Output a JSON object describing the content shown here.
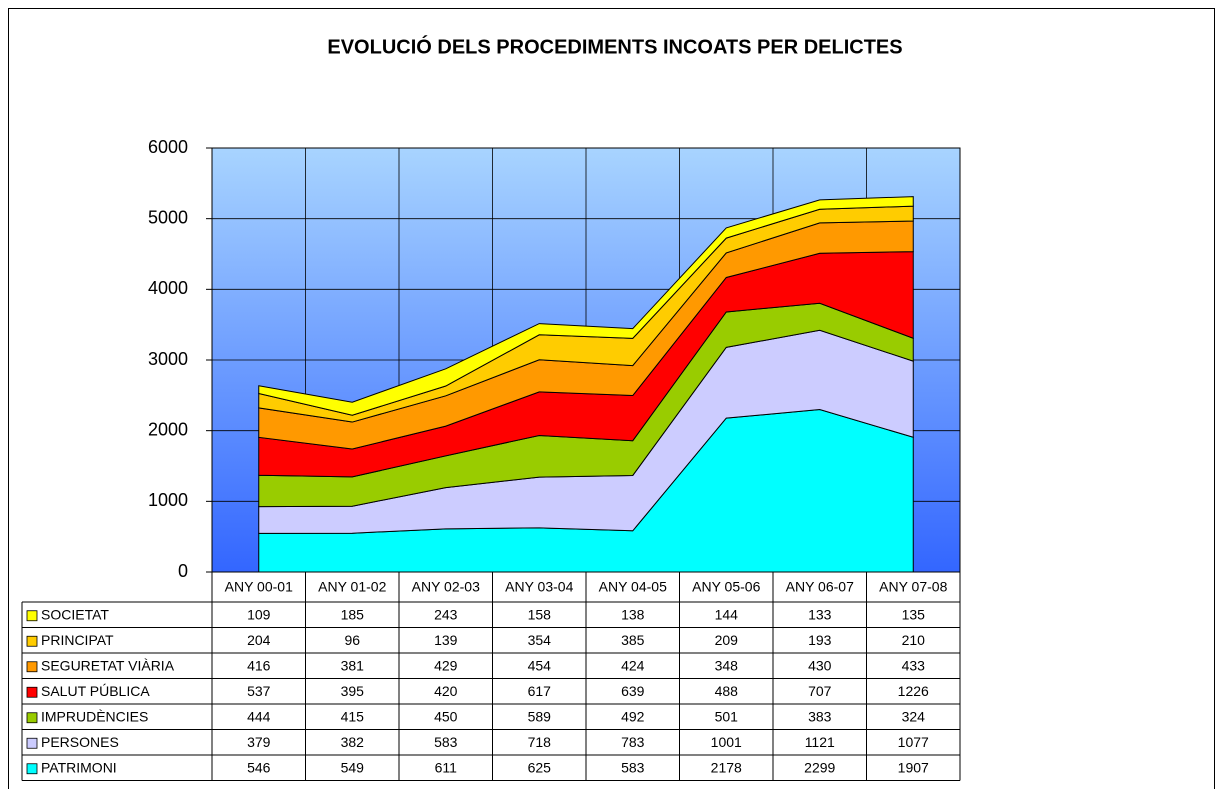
{
  "chart_data": {
    "type": "area",
    "stacked": true,
    "title": "EVOLUCIÓ DELS PROCEDIMENTS INCOATS PER DELICTES",
    "categories": [
      "ANY 00-01",
      "ANY 01-02",
      "ANY 02-03",
      "ANY 03-04",
      "ANY 04-05",
      "ANY 05-06",
      "ANY 06-07",
      "ANY 07-08"
    ],
    "series": [
      {
        "name": "SOCIETAT",
        "color": "#ffff00",
        "values": [
          109,
          185,
          243,
          158,
          138,
          144,
          133,
          135
        ]
      },
      {
        "name": "PRINCIPAT",
        "color": "#ffcc00",
        "values": [
          204,
          96,
          139,
          354,
          385,
          209,
          193,
          210
        ]
      },
      {
        "name": "SEGURETAT VIÀRIA",
        "color": "#ff9900",
        "values": [
          416,
          381,
          429,
          454,
          424,
          348,
          430,
          433
        ]
      },
      {
        "name": "SALUT PÚBLICA",
        "color": "#ff0000",
        "values": [
          537,
          395,
          420,
          617,
          639,
          488,
          707,
          1226
        ]
      },
      {
        "name": "IMPRUDÈNCIES",
        "color": "#99cc00",
        "values": [
          444,
          415,
          450,
          589,
          492,
          501,
          383,
          324
        ]
      },
      {
        "name": "PERSONES",
        "color": "#ccccff",
        "values": [
          379,
          382,
          583,
          718,
          783,
          1001,
          1121,
          1077
        ]
      },
      {
        "name": "PATRIMONI",
        "color": "#00ffff",
        "values": [
          546,
          549,
          611,
          625,
          583,
          2178,
          2299,
          1907
        ]
      }
    ],
    "ylim": [
      0,
      6000
    ],
    "yticks": [
      0,
      1000,
      2000,
      3000,
      4000,
      5000,
      6000
    ],
    "grid": true
  }
}
